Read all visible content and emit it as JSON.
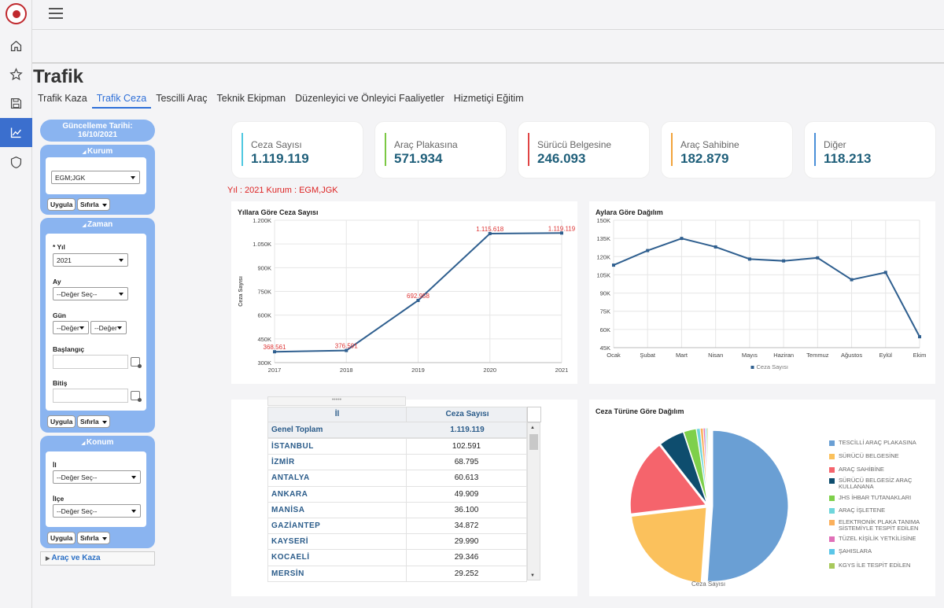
{
  "page": {
    "title": "Trafik"
  },
  "tabs": [
    "Trafik Kaza",
    "Trafik Ceza",
    "Tescilli Araç",
    "Teknik Ekipman",
    "Düzenleyici ve Önleyici Faaliyetler",
    "Hizmetiçi Eğitim"
  ],
  "active_tab": "Trafik Ceza",
  "sidebar": {
    "update_label": "Güncelleme Tarihi:",
    "update_date": "16/10/2021",
    "kurum": {
      "title": "Kurum",
      "value": "EGM;JGK",
      "apply": "Uygula",
      "reset": "Sıfırla"
    },
    "zaman": {
      "title": "Zaman",
      "yil_label": "* Yıl",
      "yil_value": "2021",
      "ay_label": "Ay",
      "ay_value": "--Değer Seç--",
      "gun_label": "Gün",
      "gun_value1": "--Değer",
      "gun_value2": "--Değer",
      "baslangic_label": "Başlangıç",
      "bitis_label": "Bitiş",
      "apply": "Uygula",
      "reset": "Sıfırla"
    },
    "konum": {
      "title": "Konum",
      "il_label": "İl",
      "il_value": "--Değer Seç--",
      "ilce_label": "İlçe",
      "ilce_value": "--Değer Seç--",
      "apply": "Uygula",
      "reset": "Sıfırla"
    },
    "arac_kaza": "Araç ve Kaza"
  },
  "stats": [
    {
      "label": "Ceza Sayısı",
      "value": "1.119.119",
      "color": "#4fc8e0"
    },
    {
      "label": "Araç Plakasına",
      "value": "571.934",
      "color": "#7bc844"
    },
    {
      "label": "Sürücü Belgesine",
      "value": "246.093",
      "color": "#e04444"
    },
    {
      "label": "Araç Sahibine",
      "value": "182.879",
      "color": "#f2a33a"
    },
    {
      "label": "Diğer",
      "value": "118.213",
      "color": "#4a8fd8"
    }
  ],
  "filter_info": "Yıl : 2021 Kurum : EGM,JGK",
  "chart_data": [
    {
      "type": "line",
      "title": "Yıllara Göre Ceza Sayısı",
      "ylabel": "Ceza Sayısı",
      "x": [
        "2017",
        "2018",
        "2019",
        "2020",
        "2021"
      ],
      "values": [
        368561,
        376591,
        692958,
        1115618,
        1119119
      ],
      "data_labels": [
        "368.561",
        "376.591",
        "692.958",
        "1.115.618",
        "1.119.119"
      ],
      "yticks": [
        "300K",
        "450K",
        "600K",
        "750K",
        "900K",
        "1.050K",
        "1.200K"
      ],
      "ylim": [
        300000,
        1200000
      ]
    },
    {
      "type": "line",
      "title": "Aylara Göre Dağılım",
      "x": [
        "Ocak",
        "Şubat",
        "Mart",
        "Nisan",
        "Mayıs",
        "Haziran",
        "Temmuz",
        "Ağustos",
        "Eylül",
        "Ekim"
      ],
      "values": [
        113000,
        125000,
        135000,
        128000,
        118000,
        116500,
        119000,
        101000,
        107000,
        54000
      ],
      "yticks": [
        "45K",
        "60K",
        "75K",
        "90K",
        "105K",
        "120K",
        "135K",
        "150K"
      ],
      "ylim": [
        45000,
        150000
      ],
      "legend": "Ceza Sayısı"
    },
    {
      "type": "pie",
      "title": "Ceza Türüne Göre Dağılım",
      "series_label": "Ceza Sayısı",
      "labels": [
        "TESCİLLİ ARAÇ PLAKASINA",
        "SÜRÜCÜ BELGESİNE",
        "ARAÇ SAHİBİNE",
        "SÜRÜCÜ BELGESİZ ARAÇ KULLANANA",
        "JHS İHBAR TUTANAKLARI",
        "ARAÇ İŞLETENE",
        "ELEKTRONİK PLAKA TANIMA SİSTEMİYLE TESPİT EDİLEN",
        "TÜZEL KİŞİLİK YETKİLİSİNE",
        "ŞAHISLARA",
        "KGYS İLE TESPİT EDİLEN"
      ],
      "values": [
        571934,
        246093,
        182879,
        61000,
        30000,
        9000,
        7000,
        4500,
        3500,
        3000
      ],
      "colors": [
        "#6a9fd4",
        "#fbc15c",
        "#f5646c",
        "#0e4d6e",
        "#7ed04b",
        "#6fd6dc",
        "#fbb05c",
        "#e070b8",
        "#5bc6e8",
        "#a8c95c"
      ]
    }
  ],
  "table": {
    "handle": "•••••",
    "col_il": "İl",
    "col_ceza": "Ceza Sayısı",
    "total_label": "Genel Toplam",
    "total_value": "1.119.119",
    "rows": [
      [
        "İSTANBUL",
        "102.591"
      ],
      [
        "İZMİR",
        "68.795"
      ],
      [
        "ANTALYA",
        "60.613"
      ],
      [
        "ANKARA",
        "49.909"
      ],
      [
        "MANİSA",
        "36.100"
      ],
      [
        "GAZİANTEP",
        "34.872"
      ],
      [
        "KAYSERİ",
        "29.990"
      ],
      [
        "KOCAELİ",
        "29.346"
      ],
      [
        "MERSİN",
        "29.252"
      ]
    ]
  }
}
